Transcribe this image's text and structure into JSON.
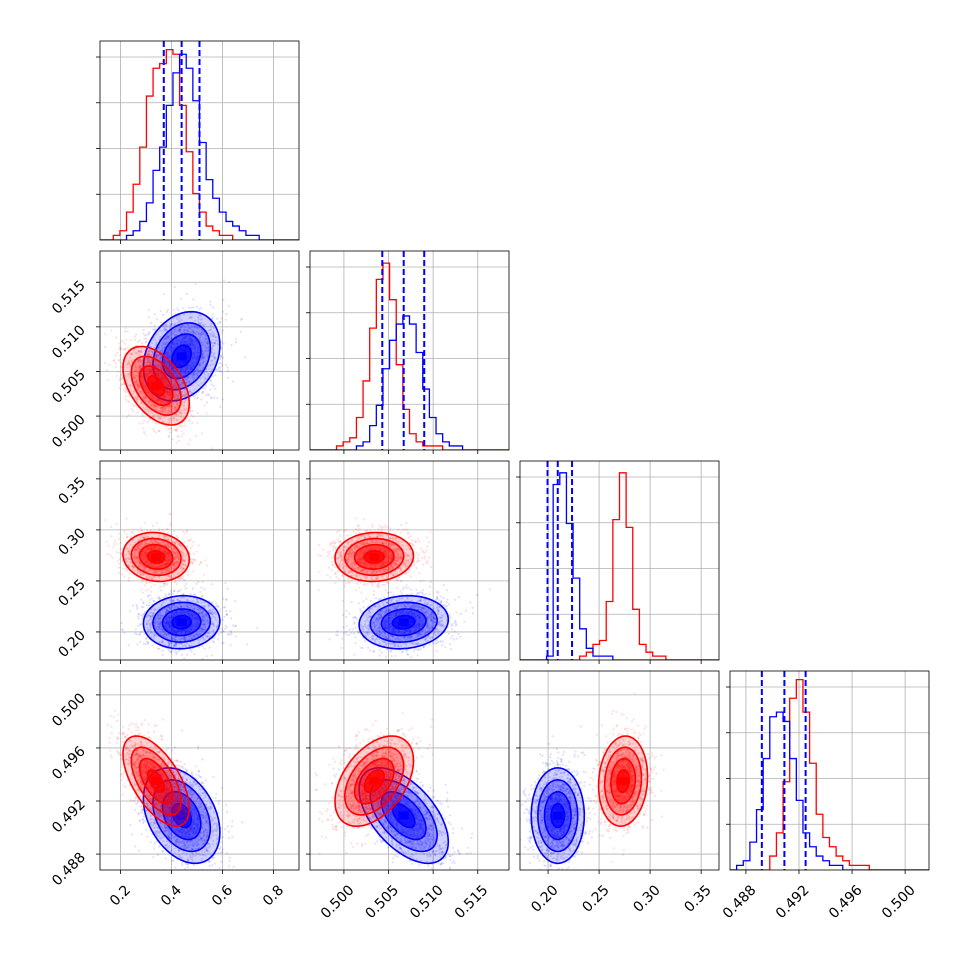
{
  "chart_data": {
    "type": "corner",
    "colors": {
      "blue": "#0000ff",
      "red": "#ff0000",
      "grid": "#b0b0b0"
    },
    "parameters": [
      {
        "id": "p0",
        "range": [
          0.12,
          0.9
        ],
        "ticks": [
          {
            "value": 0.2,
            "label": "0.2"
          },
          {
            "value": 0.4,
            "label": "0.4"
          },
          {
            "value": 0.6,
            "label": "0.6"
          },
          {
            "value": 0.8,
            "label": "0.8"
          }
        ]
      },
      {
        "id": "p1",
        "range": [
          0.4962,
          0.5185
        ],
        "ticks": [
          {
            "value": 0.5,
            "label": "0.500"
          },
          {
            "value": 0.505,
            "label": "0.505"
          },
          {
            "value": 0.51,
            "label": "0.510"
          },
          {
            "value": 0.515,
            "label": "0.515"
          }
        ]
      },
      {
        "id": "p2",
        "range": [
          0.1725,
          0.3675
        ],
        "ticks": [
          {
            "value": 0.2,
            "label": "0.20"
          },
          {
            "value": 0.25,
            "label": "0.25"
          },
          {
            "value": 0.3,
            "label": "0.30"
          },
          {
            "value": 0.35,
            "label": "0.35"
          }
        ]
      },
      {
        "id": "p3",
        "range": [
          0.4868,
          0.5018
        ],
        "ticks": [
          {
            "value": 0.488,
            "label": "0.488"
          },
          {
            "value": 0.492,
            "label": "0.492"
          },
          {
            "value": 0.496,
            "label": "0.496"
          },
          {
            "value": 0.5,
            "label": "0.500"
          }
        ]
      }
    ],
    "histograms": [
      {
        "param": 0,
        "bins": [
          0.12,
          0.9,
          30
        ],
        "blue_counts": [
          0,
          0,
          0,
          0,
          1,
          2,
          4,
          8,
          15,
          20,
          29,
          36,
          40,
          37,
          30,
          21,
          13,
          9,
          6,
          4,
          3,
          2,
          1,
          1,
          0,
          0,
          0,
          0,
          0,
          0
        ],
        "red_counts": [
          0,
          0,
          1,
          2,
          6,
          12,
          20,
          31,
          37,
          38,
          41,
          40,
          29,
          19,
          10,
          6,
          3,
          2,
          1,
          1,
          0,
          0,
          0,
          0,
          0,
          0,
          0,
          0,
          0,
          0
        ],
        "quantiles": [
          0.37,
          0.44,
          0.51
        ],
        "ymax": 42
      },
      {
        "param": 1,
        "bins": [
          0.4962,
          0.5185,
          30
        ],
        "blue_counts": [
          0,
          0,
          0,
          0,
          0,
          0,
          0,
          1,
          2,
          6,
          11,
          20,
          27,
          31,
          33,
          31,
          24,
          15,
          8,
          4,
          2,
          1,
          1,
          0,
          0,
          0,
          0,
          0,
          0,
          0
        ],
        "red_counts": [
          0,
          0,
          0,
          0,
          1,
          2,
          3,
          8,
          17,
          30,
          42,
          46,
          37,
          21,
          10,
          4,
          2,
          1,
          1,
          1,
          0,
          0,
          0,
          0,
          0,
          0,
          0,
          0,
          0,
          0
        ],
        "quantiles": [
          0.5043,
          0.5067,
          0.509
        ],
        "ymax": 48
      },
      {
        "param": 2,
        "bins": [
          0.1725,
          0.3675,
          30
        ],
        "blue_counts": [
          0,
          0,
          0,
          0,
          1,
          45,
          48,
          35,
          21,
          8,
          3,
          1,
          1,
          1,
          0,
          0,
          0,
          0,
          0,
          0,
          0,
          0,
          0,
          0,
          0,
          0,
          0,
          0,
          0,
          0
        ],
        "red_counts": [
          0,
          0,
          0,
          0,
          0,
          0,
          0,
          0,
          0,
          1,
          2,
          4,
          5,
          15,
          36,
          48,
          34,
          13,
          4,
          2,
          1,
          1,
          0,
          0,
          0,
          0,
          0,
          0,
          0,
          0
        ],
        "quantiles": [
          0.1995,
          0.2095,
          0.2235
        ],
        "ymax": 50
      },
      {
        "param": 3,
        "bins": [
          0.4868,
          0.5018,
          30
        ],
        "blue_counts": [
          0,
          1,
          2,
          6,
          13,
          24,
          33,
          34,
          32,
          24,
          15,
          8,
          5,
          3,
          2,
          1,
          1,
          0,
          0,
          0,
          0,
          0,
          0,
          0,
          0,
          0,
          0,
          0,
          0,
          0
        ],
        "red_counts": [
          0,
          0,
          0,
          0,
          0,
          0,
          3,
          8,
          19,
          37,
          41,
          34,
          23,
          12,
          7,
          5,
          3,
          2,
          1,
          1,
          1,
          0,
          0,
          0,
          0,
          0,
          0,
          0,
          0,
          0
        ],
        "quantiles": [
          0.4892,
          0.4909,
          0.4925
        ],
        "ymax": 42
      }
    ],
    "distributions": {
      "blue": {
        "mean": [
          0.44,
          0.5067,
          0.2095,
          0.4909
        ],
        "std": [
          0.075,
          0.0025,
          0.013,
          0.0018
        ],
        "corr": [
          [
            1,
            0.25,
            0.05,
            -0.35
          ],
          [
            0.25,
            1,
            0.1,
            -0.55
          ],
          [
            0.05,
            0.1,
            1,
            0
          ],
          [
            -0.35,
            -0.55,
            0,
            1
          ]
        ]
      },
      "red": {
        "mean": [
          0.34,
          0.5034,
          0.2735,
          0.4935
        ],
        "std": [
          0.065,
          0.0022,
          0.012,
          0.0017
        ],
        "corr": [
          [
            1,
            -0.45,
            -0.1,
            -0.6
          ],
          [
            -0.45,
            1,
            0.05,
            0.45
          ],
          [
            -0.1,
            0.05,
            1,
            0.1
          ],
          [
            -0.6,
            0.45,
            0.1,
            1
          ]
        ]
      }
    },
    "grid": true
  }
}
